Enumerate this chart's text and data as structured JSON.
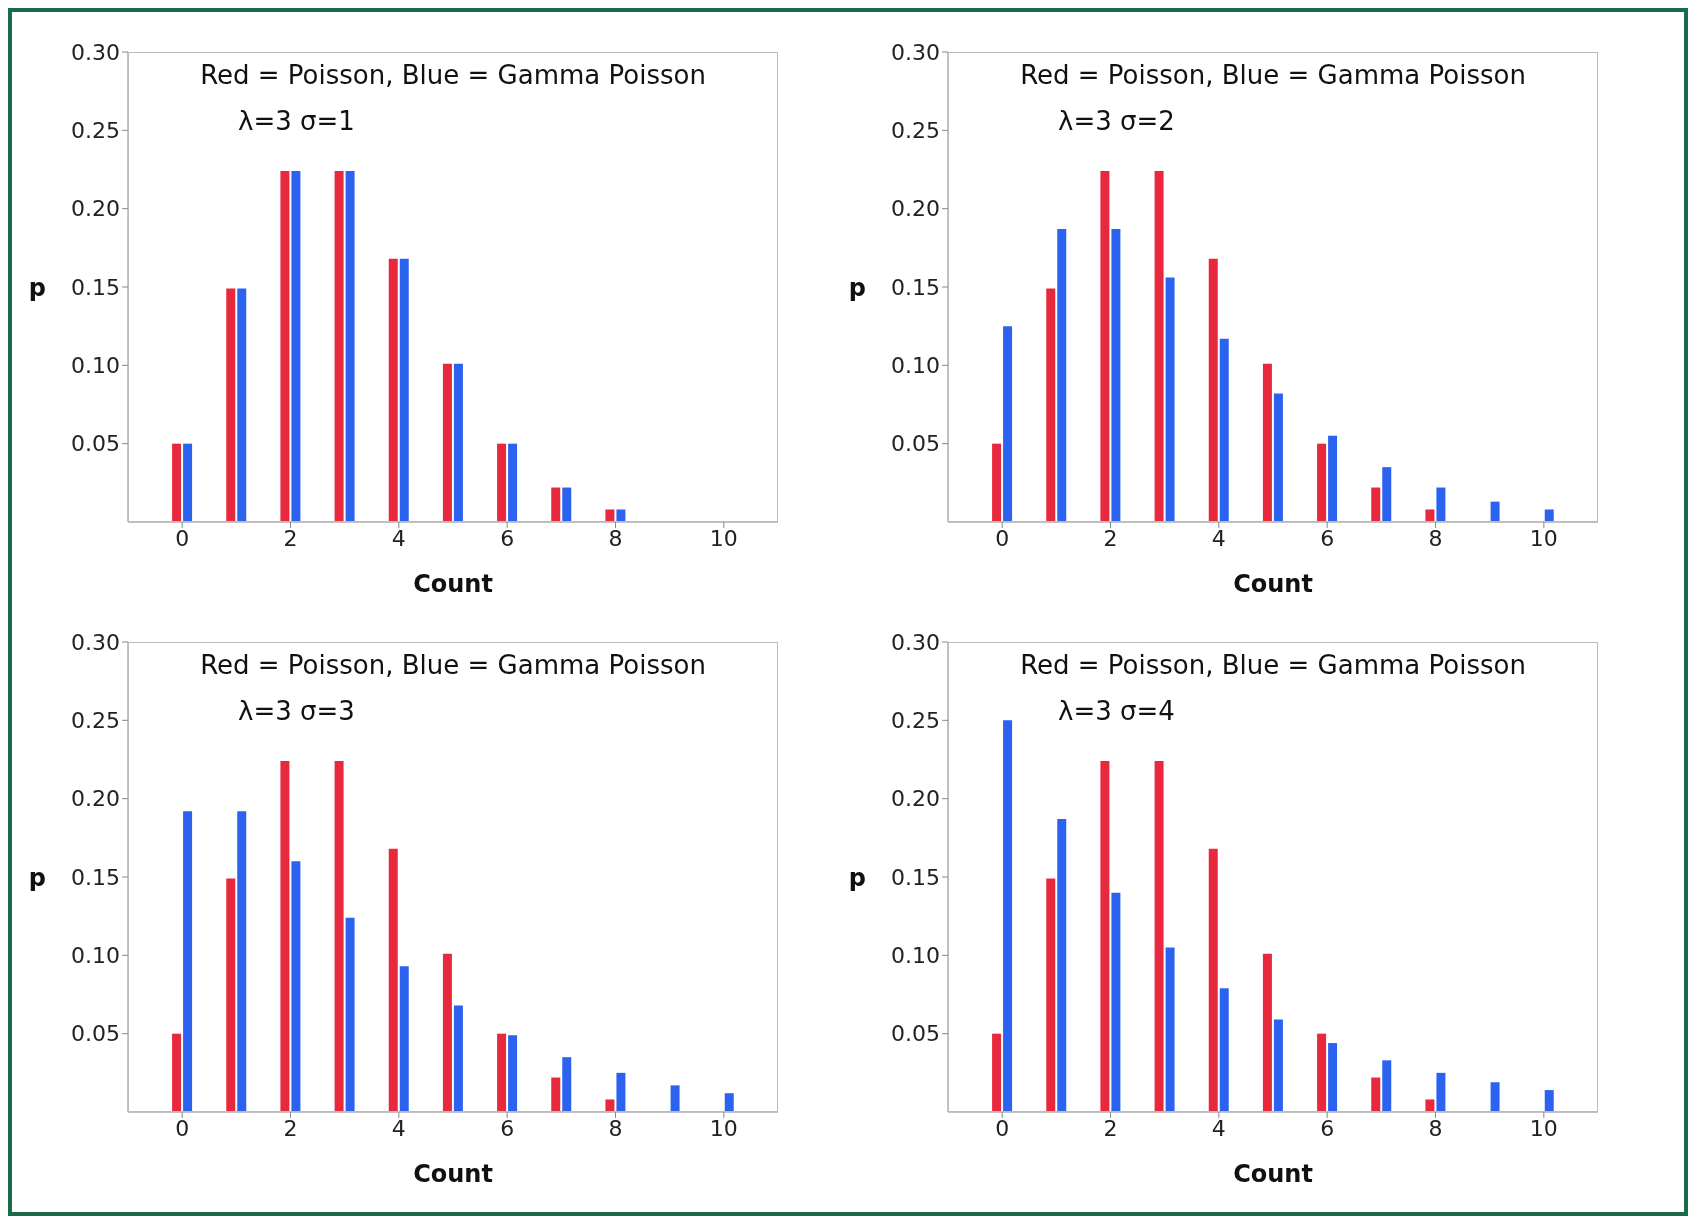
{
  "chart_data": [
    {
      "type": "bar",
      "title": "Red = Poisson, Blue = Gamma Poisson",
      "subtitle": "λ=3 σ=1",
      "xlabel": "Count",
      "ylabel": "p",
      "x": [
        0,
        1,
        2,
        3,
        4,
        5,
        6,
        7,
        8,
        9,
        10
      ],
      "xlim": [
        -1,
        11
      ],
      "xticks": [
        0,
        2,
        4,
        6,
        8,
        10
      ],
      "ylim": [
        0,
        0.3
      ],
      "yticks": [
        {
          "value": 0.05,
          "label": "0.05"
        },
        {
          "value": 0.1,
          "label": "0.10"
        },
        {
          "value": 0.15,
          "label": "0.15"
        },
        {
          "value": 0.2,
          "label": "0.20"
        },
        {
          "value": 0.25,
          "label": "0.25"
        },
        {
          "value": 0.3,
          "label": "0.30"
        }
      ],
      "grid": false,
      "legend": false,
      "series": [
        {
          "color": "#e8283c",
          "values": [
            0.05,
            0.149,
            0.224,
            0.224,
            0.168,
            0.101,
            0.05,
            0.022,
            0.008,
            0,
            0
          ]
        },
        {
          "color": "#2b63f0",
          "values": [
            0.05,
            0.149,
            0.224,
            0.224,
            0.168,
            0.101,
            0.05,
            0.022,
            0.008,
            0,
            0
          ]
        }
      ]
    },
    {
      "type": "bar",
      "title": "Red = Poisson, Blue = Gamma Poisson",
      "subtitle": "λ=3 σ=2",
      "xlabel": "Count",
      "ylabel": "p",
      "x": [
        0,
        1,
        2,
        3,
        4,
        5,
        6,
        7,
        8,
        9,
        10
      ],
      "xlim": [
        -1,
        11
      ],
      "xticks": [
        0,
        2,
        4,
        6,
        8,
        10
      ],
      "ylim": [
        0,
        0.3
      ],
      "yticks": [
        {
          "value": 0.05,
          "label": "0.05"
        },
        {
          "value": 0.1,
          "label": "0.10"
        },
        {
          "value": 0.15,
          "label": "0.15"
        },
        {
          "value": 0.2,
          "label": "0.20"
        },
        {
          "value": 0.25,
          "label": "0.25"
        },
        {
          "value": 0.3,
          "label": "0.30"
        }
      ],
      "grid": false,
      "legend": false,
      "series": [
        {
          "color": "#e8283c",
          "values": [
            0.05,
            0.149,
            0.224,
            0.224,
            0.168,
            0.101,
            0.05,
            0.022,
            0.008,
            0,
            0
          ]
        },
        {
          "color": "#2b63f0",
          "values": [
            0.125,
            0.187,
            0.187,
            0.156,
            0.117,
            0.082,
            0.055,
            0.035,
            0.022,
            0.013,
            0.008
          ]
        }
      ]
    },
    {
      "type": "bar",
      "title": "Red = Poisson, Blue = Gamma Poisson",
      "subtitle": "λ=3 σ=3",
      "xlabel": "Count",
      "ylabel": "p",
      "x": [
        0,
        1,
        2,
        3,
        4,
        5,
        6,
        7,
        8,
        9,
        10
      ],
      "xlim": [
        -1,
        11
      ],
      "xticks": [
        0,
        2,
        4,
        6,
        8,
        10
      ],
      "ylim": [
        0,
        0.3
      ],
      "yticks": [
        {
          "value": 0.05,
          "label": "0.05"
        },
        {
          "value": 0.1,
          "label": "0.10"
        },
        {
          "value": 0.15,
          "label": "0.15"
        },
        {
          "value": 0.2,
          "label": "0.20"
        },
        {
          "value": 0.25,
          "label": "0.25"
        },
        {
          "value": 0.3,
          "label": "0.30"
        }
      ],
      "grid": false,
      "legend": false,
      "series": [
        {
          "color": "#e8283c",
          "values": [
            0.05,
            0.149,
            0.224,
            0.224,
            0.168,
            0.101,
            0.05,
            0.022,
            0.008,
            0,
            0
          ]
        },
        {
          "color": "#2b63f0",
          "values": [
            0.192,
            0.192,
            0.16,
            0.124,
            0.093,
            0.068,
            0.049,
            0.035,
            0.025,
            0.017,
            0.012
          ]
        }
      ]
    },
    {
      "type": "bar",
      "title": "Red = Poisson, Blue = Gamma Poisson",
      "subtitle": "λ=3 σ=4",
      "xlabel": "Count",
      "ylabel": "p",
      "x": [
        0,
        1,
        2,
        3,
        4,
        5,
        6,
        7,
        8,
        9,
        10
      ],
      "xlim": [
        -1,
        11
      ],
      "xticks": [
        0,
        2,
        4,
        6,
        8,
        10
      ],
      "ylim": [
        0,
        0.3
      ],
      "yticks": [
        {
          "value": 0.05,
          "label": "0.05"
        },
        {
          "value": 0.1,
          "label": "0.10"
        },
        {
          "value": 0.15,
          "label": "0.15"
        },
        {
          "value": 0.2,
          "label": "0.20"
        },
        {
          "value": 0.25,
          "label": "0.25"
        },
        {
          "value": 0.3,
          "label": "0.30"
        }
      ],
      "grid": false,
      "legend": false,
      "series": [
        {
          "color": "#e8283c",
          "values": [
            0.05,
            0.149,
            0.224,
            0.224,
            0.168,
            0.101,
            0.05,
            0.022,
            0.008,
            0,
            0
          ]
        },
        {
          "color": "#2b63f0",
          "values": [
            0.25,
            0.187,
            0.14,
            0.105,
            0.079,
            0.059,
            0.044,
            0.033,
            0.025,
            0.019,
            0.014
          ]
        }
      ]
    }
  ]
}
